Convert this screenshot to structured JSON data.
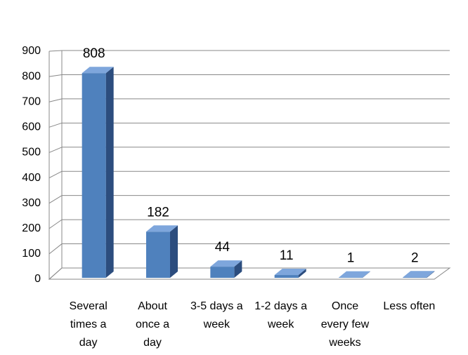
{
  "chart_data": {
    "type": "bar3d",
    "categories": [
      "Several times a day",
      "About once a day",
      "3-5 days a week",
      "1-2 days a week",
      "Once every few weeks",
      "Less often"
    ],
    "values": [
      808,
      182,
      44,
      11,
      1,
      2
    ],
    "color": "#4f81bd",
    "ylim": [
      0,
      900
    ],
    "yticks": [
      0,
      100,
      200,
      300,
      400,
      500,
      600,
      700,
      800,
      900
    ],
    "grid": true
  }
}
